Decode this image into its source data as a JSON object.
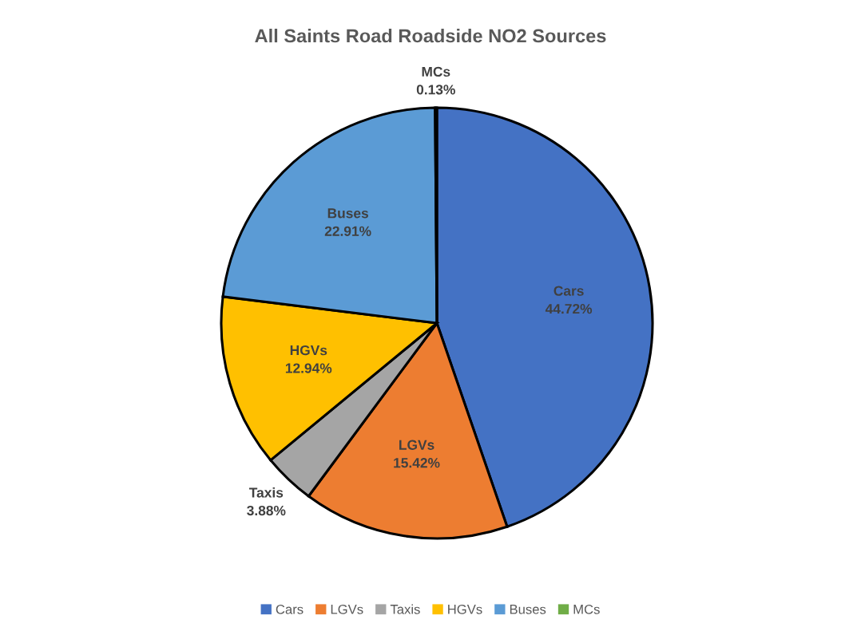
{
  "chart_data": {
    "type": "pie",
    "title": "All Saints Road Roadside NO2 Sources",
    "categories": [
      "Cars",
      "LGVs",
      "Taxis",
      "HGVs",
      "Buses",
      "MCs"
    ],
    "values": [
      44.72,
      15.42,
      3.88,
      12.94,
      22.91,
      0.13
    ],
    "colors": [
      "#4472c4",
      "#ed7d31",
      "#a5a5a5",
      "#ffc000",
      "#5b9bd5",
      "#70ad47"
    ],
    "value_labels": [
      "44.72%",
      "15.42%",
      "3.88%",
      "12.94%",
      "22.91%",
      "0.13%"
    ],
    "legend": "bottom"
  }
}
